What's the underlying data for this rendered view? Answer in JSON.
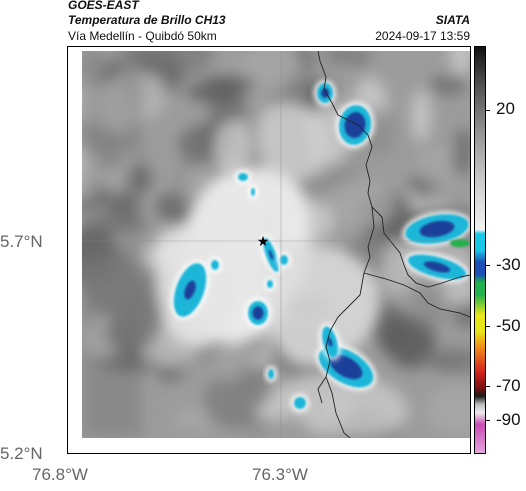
{
  "header": {
    "satellite": "GOES-EAST",
    "product": "Temperatura de Brillo CH13",
    "route": "Vía Medellín - Quibdó 50km",
    "agency": "SIATA",
    "timestamp": "2024-09-17 13:59"
  },
  "axes": {
    "lat_ticks": [
      "5.7°N",
      "5.2°N"
    ],
    "lon_ticks": [
      "76.8°W",
      "76.3°W"
    ]
  },
  "colorbar": {
    "labels": [
      "20",
      "-30",
      "-50",
      "-70",
      "-90"
    ],
    "colors": {
      "warm_top": "#111111",
      "warm_bottom": "#f2f2f2",
      "cyan": "#19c8e6",
      "blue": "#1d4fb8",
      "green": "#22b14c",
      "yellow": "#e6e61a",
      "orange": "#f08c1a",
      "red": "#d2231e",
      "dark": "#1a1a1a",
      "magenta": "#c84bb4"
    }
  },
  "map": {
    "marker_icon": "star-icon",
    "colors": {
      "ground_dark": "#6f6f6f",
      "ground_mid": "#9c9c9c",
      "cloud_light": "#e8e8e8",
      "cloud_cold": "#1bb6d8",
      "cloud_core": "#1e3f9a",
      "boundary": "#222222"
    }
  }
}
